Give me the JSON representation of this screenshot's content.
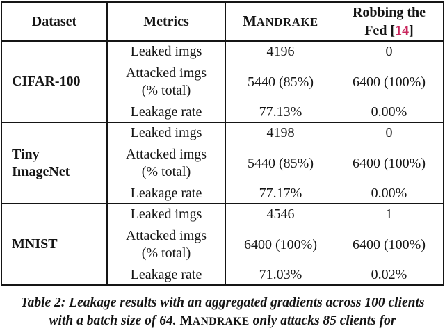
{
  "page": {
    "background": "#ffffff",
    "text_color": "#151515",
    "cite_color": "#c9255c"
  },
  "table": {
    "headers": {
      "dataset": "Dataset",
      "metrics": "Metrics",
      "mandrake_initial": "M",
      "mandrake_rest": "ANDRAKE",
      "robbing_line1": "Robbing the",
      "robbing_pre": "Fed [",
      "robbing_cite": "14",
      "robbing_post": "]"
    },
    "blocks": [
      {
        "dataset_line1": "CIFAR-100",
        "dataset_line2": "",
        "rows": [
          {
            "metric": "Leaked imgs",
            "metric2": "",
            "mandrake": "4196",
            "robbing": "0"
          },
          {
            "metric": "Attacked imgs",
            "metric2": "(% total)",
            "mandrake": "5440 (85%)",
            "robbing": "6400 (100%)"
          },
          {
            "metric": "Leakage rate",
            "metric2": "",
            "mandrake": "77.13%",
            "robbing": "0.00%"
          }
        ]
      },
      {
        "dataset_line1": "Tiny",
        "dataset_line2": "ImageNet",
        "rows": [
          {
            "metric": "Leaked imgs",
            "metric2": "",
            "mandrake": "4198",
            "robbing": "0"
          },
          {
            "metric": "Attacked imgs",
            "metric2": "(% total)",
            "mandrake": "5440 (85%)",
            "robbing": "6400 (100%)"
          },
          {
            "metric": "Leakage rate",
            "metric2": "",
            "mandrake": "77.17%",
            "robbing": "0.00%"
          }
        ]
      },
      {
        "dataset_line1": "MNIST",
        "dataset_line2": "",
        "rows": [
          {
            "metric": "Leaked imgs",
            "metric2": "",
            "mandrake": "4546",
            "robbing": "1"
          },
          {
            "metric": "Attacked imgs",
            "metric2": "(% total)",
            "mandrake": "6400 (100%)",
            "robbing": "6400 (100%)"
          },
          {
            "metric": "Leakage rate",
            "metric2": "",
            "mandrake": "71.03%",
            "robbing": "0.02%"
          }
        ]
      }
    ]
  },
  "caption": {
    "line1": "Table 2: Leakage results with an aggregated gradients across 100 clients",
    "line2_pre": "with a batch size of 64. ",
    "brand_initial": "M",
    "brand_rest": "ANDRAKE",
    "line2_post": " only attacks 85 clients for"
  }
}
